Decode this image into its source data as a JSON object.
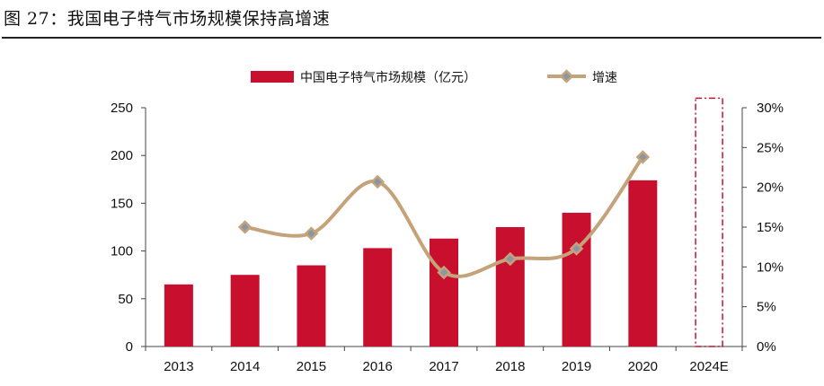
{
  "figure_title": "图 27：我国电子特气市场规模保持高增速",
  "colors": {
    "bar": "#c8102e",
    "line": "#c4a27a",
    "marker_fill": "#8a96a6",
    "axis": "#444444",
    "projection": "#c8102e"
  },
  "chart_data": {
    "type": "bar+line",
    "categories": [
      "2013",
      "2014",
      "2015",
      "2016",
      "2017",
      "2018",
      "2019",
      "2020",
      "2024E"
    ],
    "series": [
      {
        "name": "中国电子特气市场规模（亿元）",
        "type": "bar",
        "axis": "left",
        "values": [
          65,
          75,
          85,
          103,
          113,
          125,
          140,
          174,
          null
        ]
      },
      {
        "name": "增速",
        "type": "line",
        "axis": "right",
        "smooth": true,
        "marker": "diamond",
        "values": [
          null,
          15.0,
          14.2,
          20.7,
          9.3,
          11.0,
          12.3,
          23.8,
          null
        ]
      }
    ],
    "projection": {
      "category": "2024E",
      "value": 260,
      "style": "dash-dot outline"
    },
    "y_left": {
      "ticks": [
        0,
        50,
        100,
        150,
        200,
        250
      ],
      "ylim": [
        0,
        250
      ]
    },
    "y_right": {
      "ticks": [
        "0%",
        "5%",
        "10%",
        "15%",
        "20%",
        "25%",
        "30%"
      ],
      "ylim": [
        0,
        30
      ]
    },
    "legend": "top-center",
    "grid": false
  }
}
